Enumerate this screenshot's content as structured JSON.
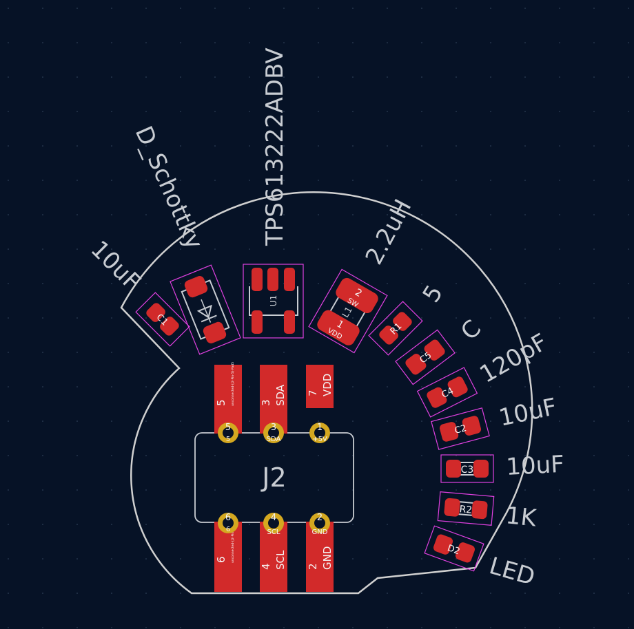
{
  "colors": {
    "background": "#061226",
    "edge_cuts": "#d0d0d0",
    "pad_copper": "#d22a2a",
    "courtyard": "#e040e0",
    "silkscreen": "#c8ccd2",
    "pth_ring": "#d4a820"
  },
  "labels": {
    "c1_value": "10uF",
    "d1_value": "D_Schottky",
    "u1_value": "TPS613222ADBV",
    "l1_value": "2.2uH",
    "r1_value": "5",
    "c5_value": "C",
    "c4_value": "120pF",
    "c2_value": "10uF",
    "c3_value": "10uF",
    "r2_value": "1K",
    "d2_value": "LED",
    "j2_ref": "J2"
  },
  "refs": {
    "c1": "C1",
    "u1": "U1",
    "l1": "L1",
    "r1": "R1",
    "c5": "C5",
    "c4": "C4",
    "c2": "C2",
    "c3": "C3",
    "r2": "R2",
    "d2": "D2"
  },
  "l1_pads": {
    "pad1_num": "1",
    "pad1_net": "VDD",
    "pad2_num": "2",
    "pad2_net": "SW"
  },
  "connector_fingers": [
    {
      "num": "5",
      "net": "unconnected-(J2-Pin-5)-Pad5"
    },
    {
      "num": "3",
      "net": "SDA"
    },
    {
      "num": "7",
      "net": "VDD"
    },
    {
      "num": "6",
      "net": "unconnected-(J2-Pin-6)-Pad6"
    },
    {
      "num": "4",
      "net": "SCL"
    },
    {
      "num": "2",
      "net": "GND"
    }
  ],
  "pth_pads": [
    {
      "num": "5",
      "net": "5"
    },
    {
      "num": "3",
      "net": "SDA"
    },
    {
      "num": "1",
      "net": "+5V"
    },
    {
      "num": "6",
      "net": "6"
    },
    {
      "num": "4",
      "net": "SCL"
    },
    {
      "num": "2",
      "net": "GND"
    }
  ]
}
